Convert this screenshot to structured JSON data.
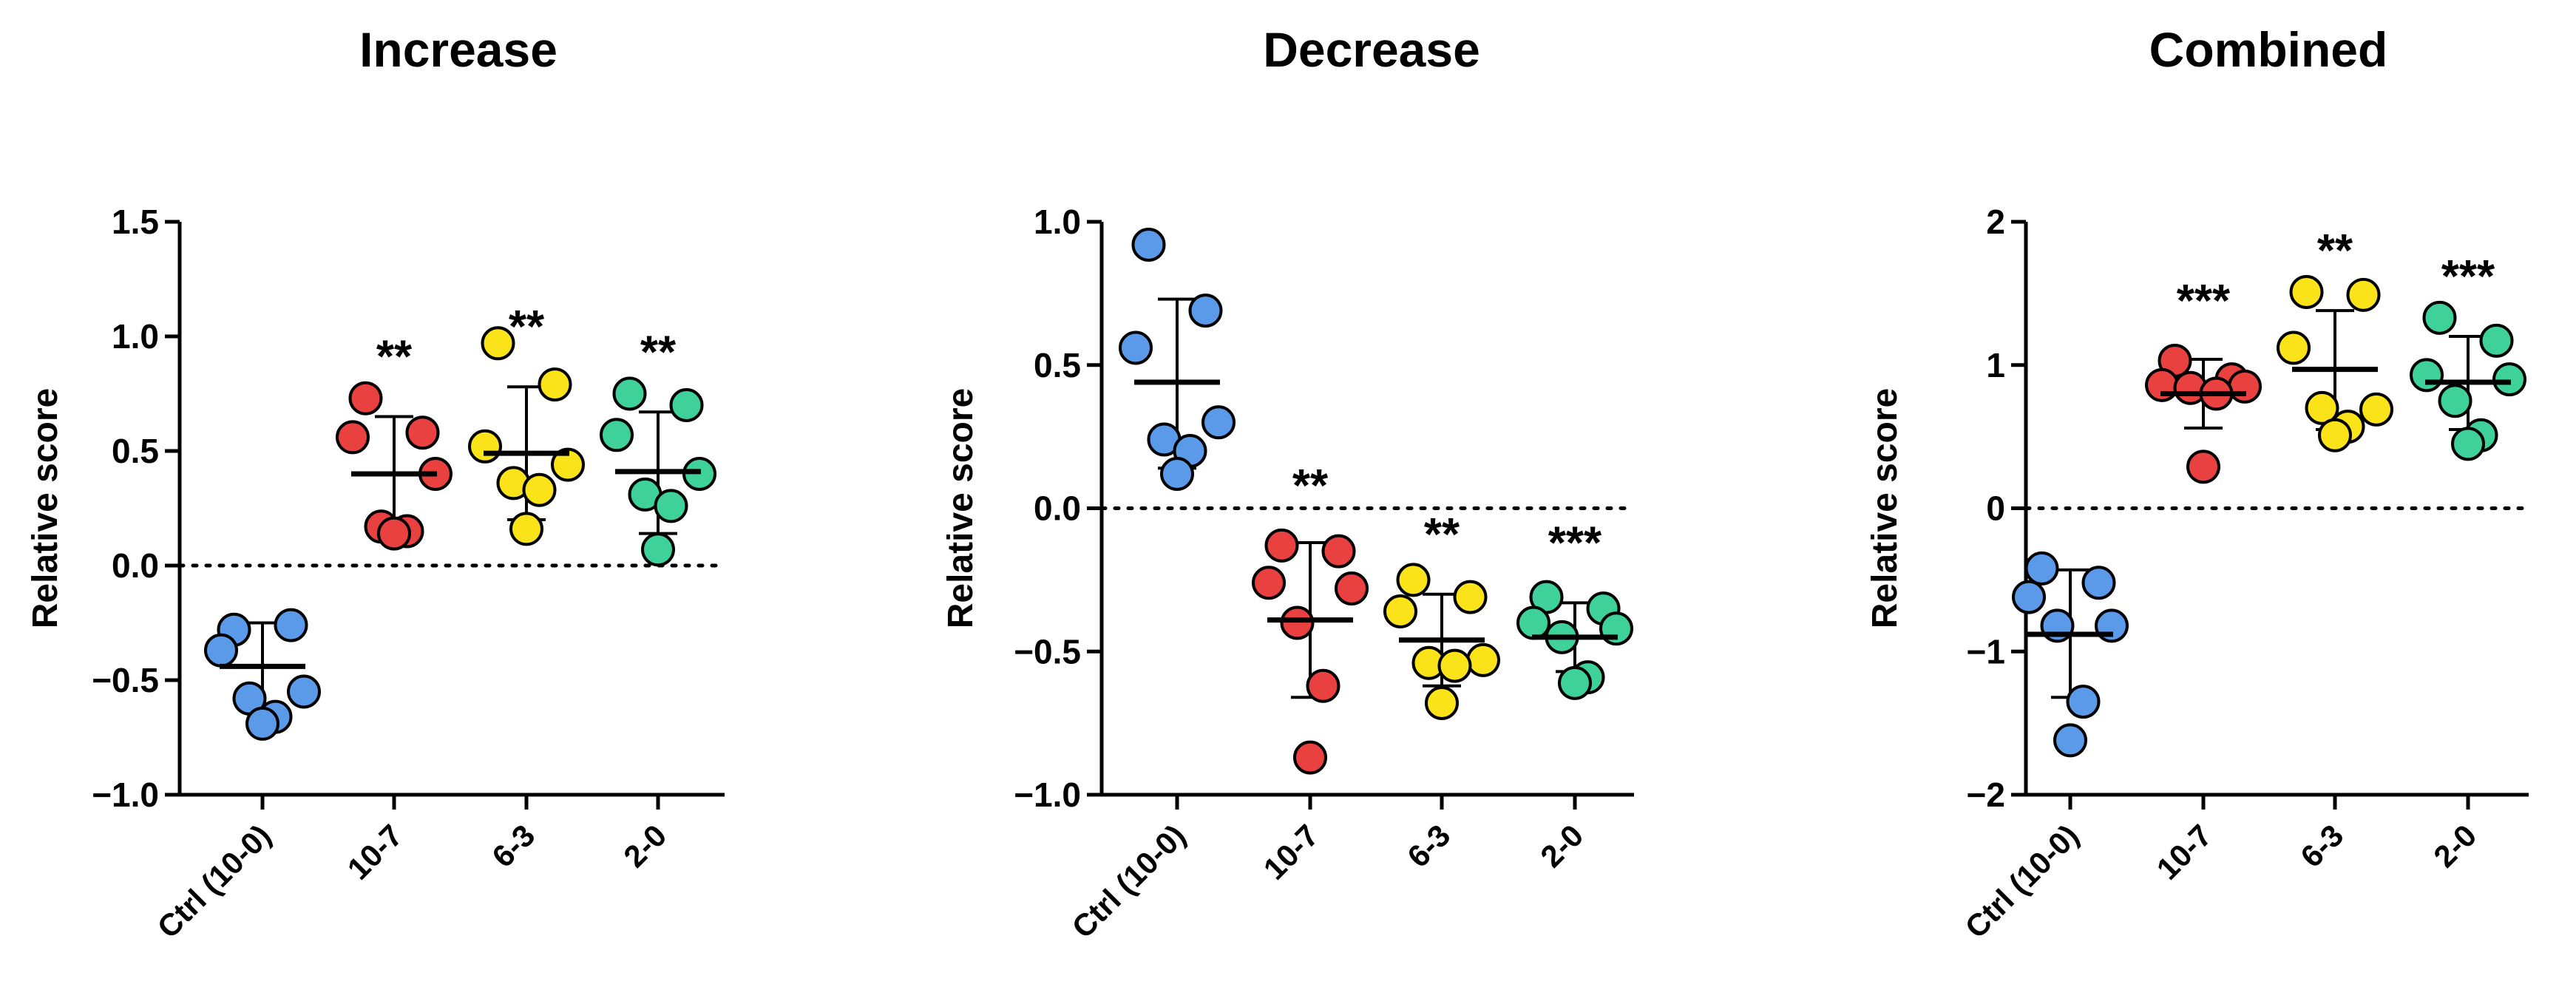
{
  "chart_data": [
    {
      "type": "scatter",
      "title": "Increase",
      "ylabel": "Relative score",
      "xlabel": "",
      "ylim": [
        -1.0,
        1.5
      ],
      "yticks": [
        -1.0,
        -0.5,
        0.0,
        0.5,
        1.0,
        1.5
      ],
      "ytick_labels": [
        "−1.0",
        "−0.5",
        "0.0",
        "0.5",
        "1.0",
        "1.5"
      ],
      "reference_line": 0,
      "categories": [
        "Ctrl (10-0)",
        "10-7",
        "6-3",
        "2-0"
      ],
      "groups": [
        {
          "name": "Ctrl (10-0)",
          "color": "#5b9ae9",
          "points": [
            -0.28,
            -0.26,
            -0.37,
            -0.55,
            -0.58,
            -0.66,
            -0.69
          ],
          "mean": -0.44,
          "sd_low": -0.63,
          "sd_high": -0.25,
          "significance": ""
        },
        {
          "name": "10-7",
          "color": "#e8413f",
          "points": [
            0.73,
            0.58,
            0.56,
            0.4,
            0.17,
            0.15,
            0.14
          ],
          "mean": 0.4,
          "sd_low": 0.16,
          "sd_high": 0.65,
          "significance": "**"
        },
        {
          "name": "6-3",
          "color": "#fbe319",
          "points": [
            0.97,
            0.79,
            0.52,
            0.44,
            0.36,
            0.33,
            0.16
          ],
          "mean": 0.49,
          "sd_low": 0.2,
          "sd_high": 0.78,
          "significance": "**"
        },
        {
          "name": "2-0",
          "color": "#3ed29a",
          "points": [
            0.75,
            0.7,
            0.57,
            0.4,
            0.31,
            0.26,
            0.07
          ],
          "mean": 0.41,
          "sd_low": 0.14,
          "sd_high": 0.67,
          "significance": "**"
        }
      ]
    },
    {
      "type": "scatter",
      "title": "Decrease",
      "ylabel": "Relative score",
      "xlabel": "",
      "ylim": [
        -1.0,
        1.0
      ],
      "yticks": [
        -1.0,
        -0.5,
        0.0,
        0.5,
        1.0
      ],
      "ytick_labels": [
        "−1.0",
        "−0.5",
        "0.0",
        "0.5",
        "1.0"
      ],
      "reference_line": 0,
      "categories": [
        "Ctrl (10-0)",
        "10-7",
        "6-3",
        "2-0"
      ],
      "groups": [
        {
          "name": "Ctrl (10-0)",
          "color": "#5b9ae9",
          "points": [
            0.92,
            0.69,
            0.56,
            0.3,
            0.24,
            0.2,
            0.12
          ],
          "mean": 0.44,
          "sd_low": 0.14,
          "sd_high": 0.73,
          "significance": ""
        },
        {
          "name": "10-7",
          "color": "#e8413f",
          "points": [
            -0.13,
            -0.15,
            -0.26,
            -0.28,
            -0.4,
            -0.62,
            -0.87
          ],
          "mean": -0.39,
          "sd_low": -0.66,
          "sd_high": -0.12,
          "significance": "**"
        },
        {
          "name": "6-3",
          "color": "#fbe319",
          "points": [
            -0.25,
            -0.31,
            -0.36,
            -0.53,
            -0.54,
            -0.55,
            -0.68
          ],
          "mean": -0.46,
          "sd_low": -0.62,
          "sd_high": -0.3,
          "significance": "**"
        },
        {
          "name": "2-0",
          "color": "#3ed29a",
          "points": [
            -0.31,
            -0.35,
            -0.4,
            -0.42,
            -0.45,
            -0.59,
            -0.61
          ],
          "mean": -0.45,
          "sd_low": -0.57,
          "sd_high": -0.33,
          "significance": "***"
        }
      ]
    },
    {
      "type": "scatter",
      "title": "Combined",
      "ylabel": "Relative score",
      "xlabel": "",
      "ylim": [
        -2,
        2
      ],
      "yticks": [
        -2,
        -1,
        0,
        1,
        2
      ],
      "ytick_labels": [
        "−2",
        "−1",
        "0",
        "1",
        "2"
      ],
      "reference_line": 0,
      "categories": [
        "Ctrl (10-0)",
        "10-7",
        "6-3",
        "2-0"
      ],
      "groups": [
        {
          "name": "Ctrl (10-0)",
          "color": "#5b9ae9",
          "points": [
            -0.42,
            -0.52,
            -0.62,
            -0.82,
            -0.82,
            -1.35,
            -1.62
          ],
          "mean": -0.88,
          "sd_low": -1.32,
          "sd_high": -0.43,
          "significance": ""
        },
        {
          "name": "10-7",
          "color": "#e8413f",
          "points": [
            1.03,
            0.9,
            0.86,
            0.85,
            0.84,
            0.8,
            0.29
          ],
          "mean": 0.8,
          "sd_low": 0.56,
          "sd_high": 1.04,
          "significance": "***"
        },
        {
          "name": "6-3",
          "color": "#fbe319",
          "points": [
            1.51,
            1.49,
            1.12,
            0.69,
            0.7,
            0.57,
            0.51
          ],
          "mean": 0.97,
          "sd_low": 0.55,
          "sd_high": 1.38,
          "significance": "**"
        },
        {
          "name": "2-0",
          "color": "#3ed29a",
          "points": [
            1.33,
            1.17,
            0.93,
            0.9,
            0.75,
            0.51,
            0.45
          ],
          "mean": 0.88,
          "sd_low": 0.55,
          "sd_high": 1.2,
          "significance": "***"
        }
      ]
    }
  ]
}
